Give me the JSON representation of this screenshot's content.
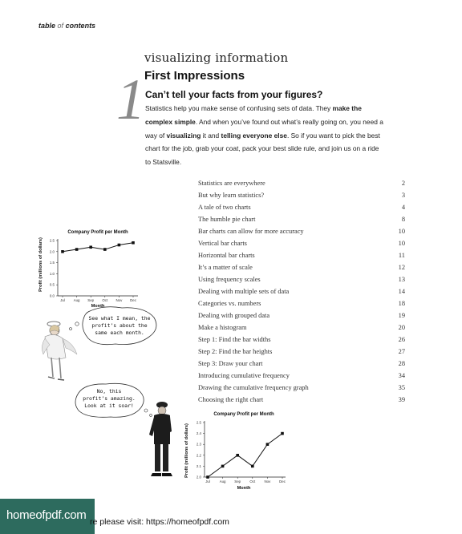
{
  "header": {
    "label_main": "table",
    "label_of": "of",
    "label_end": "contents"
  },
  "chapter": {
    "number": "1",
    "kicker": "visualizing information",
    "title": "First Impressions"
  },
  "intro": {
    "heading": "Can’t tell your facts from your figures?",
    "segments": [
      {
        "text": "Statistics help you make sense of confusing sets of data. They ",
        "bold": false
      },
      {
        "text": "make the complex simple",
        "bold": true
      },
      {
        "text": ". And when you’ve found out what’s really going on, you need a way of ",
        "bold": false
      },
      {
        "text": "visualizing",
        "bold": true
      },
      {
        "text": " it and ",
        "bold": false
      },
      {
        "text": "telling everyone else",
        "bold": true
      },
      {
        "text": ". So if you want to pick the best chart for the job, grab your coat, pack your best slide rule, and join us on a ride to Statsville.",
        "bold": false
      }
    ]
  },
  "toc": [
    {
      "title": "Statistics are everywhere",
      "page": "2"
    },
    {
      "title": "But why learn statistics?",
      "page": "3"
    },
    {
      "title": "A tale of two charts",
      "page": "4"
    },
    {
      "title": "The humble pie chart",
      "page": "8"
    },
    {
      "title": "Bar charts can allow for more accuracy",
      "page": "10"
    },
    {
      "title": "Vertical bar charts",
      "page": "10"
    },
    {
      "title": "Horizontal bar charts",
      "page": "11"
    },
    {
      "title": "It’s a matter of scale",
      "page": "12"
    },
    {
      "title": "Using frequency scales",
      "page": "13"
    },
    {
      "title": "Dealing with multiple sets of data",
      "page": "14"
    },
    {
      "title": "Categories vs. numbers",
      "page": "18"
    },
    {
      "title": "Dealing with grouped data",
      "page": "19"
    },
    {
      "title": "Make a histogram",
      "page": "20"
    },
    {
      "title": "Step 1: Find the bar widths",
      "page": "26"
    },
    {
      "title": "Step 2: Find the bar heights",
      "page": "27"
    },
    {
      "title": "Step 3: Draw your chart",
      "page": "28"
    },
    {
      "title": "Introducing cumulative frequency",
      "page": "34"
    },
    {
      "title": "Drawing the cumulative frequency graph",
      "page": "35"
    },
    {
      "title": "Choosing the right chart",
      "page": "39"
    }
  ],
  "speech": {
    "left": [
      "See what I mean, the",
      "profit’s about the",
      "same each month."
    ],
    "right": [
      "No, this",
      "profit’s amazing.",
      "Look at it soar!"
    ]
  },
  "chart_data": [
    {
      "type": "line",
      "title": "Company Profit per Month",
      "xlabel": "Month",
      "ylabel": "Profit (millions of dollars)",
      "categories": [
        "Jul",
        "Aug",
        "Sep",
        "Oct",
        "Nov",
        "Dec"
      ],
      "values": [
        2.0,
        2.1,
        2.2,
        2.1,
        2.3,
        2.4
      ],
      "ylim": [
        0.0,
        2.5
      ],
      "yticks": [
        "0.0",
        "0.5",
        "1.0",
        "1.5",
        "2.0",
        "2.5"
      ],
      "grid": false
    },
    {
      "type": "line",
      "title": "Company Profit per Month",
      "xlabel": "Month",
      "ylabel": "Profit (millions of dollars)",
      "categories": [
        "Jul",
        "Aug",
        "Sep",
        "Oct",
        "Nov",
        "Dec"
      ],
      "values": [
        2.0,
        2.1,
        2.2,
        2.1,
        2.3,
        2.4
      ],
      "ylim": [
        2.0,
        2.5
      ],
      "yticks": [
        "2.0",
        "2.1",
        "2.2",
        "2.3",
        "2.4",
        "2.5"
      ],
      "grid": false
    }
  ],
  "footer": {
    "logo_text": "homeofpdf.com",
    "visible_text": "re please visit: https://homeofpdf.com"
  },
  "colors": {
    "footer_logo_bg": "#2d6b5e",
    "chapter_number": "#8a8a8a"
  }
}
